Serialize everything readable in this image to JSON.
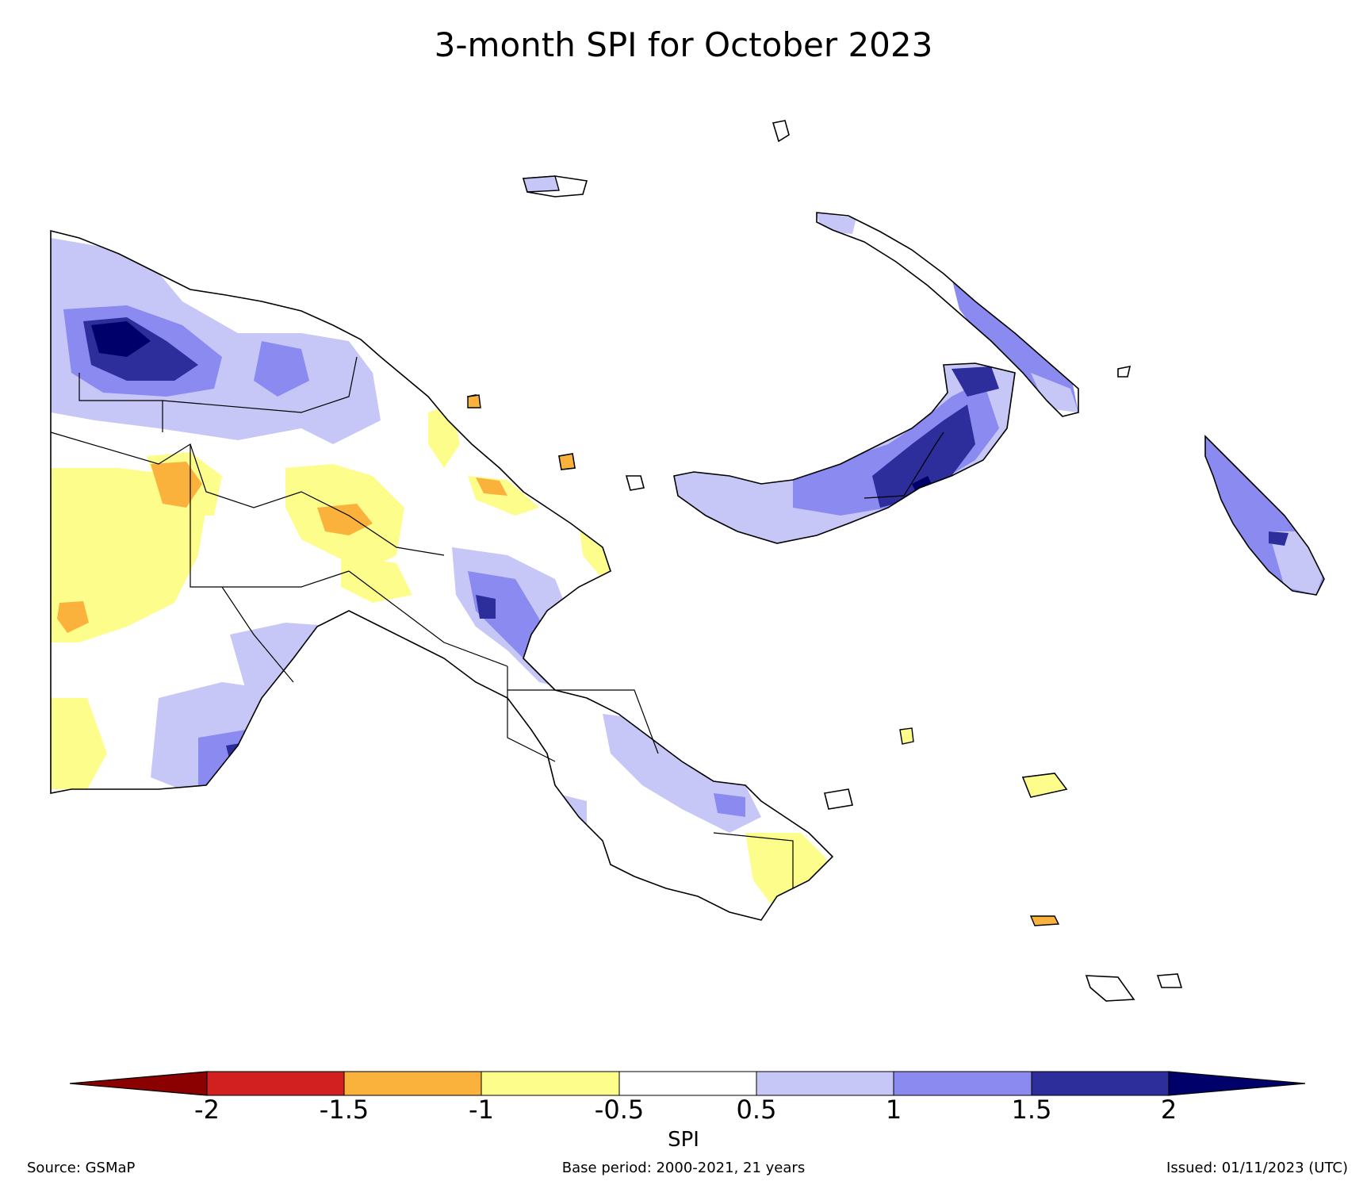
{
  "title": "3-month SPI for October 2023",
  "colorbar": {
    "label": "SPI",
    "ticks": [
      "-2",
      "-1.5",
      "-1",
      "-0.5",
      "0.5",
      "1",
      "1.5",
      "2"
    ],
    "bins": [
      {
        "range": "< -2",
        "color": "#8b0000"
      },
      {
        "range": "-2 to -1.5",
        "color": "#d21f1f"
      },
      {
        "range": "-1.5 to -1",
        "color": "#fbb23c"
      },
      {
        "range": "-1 to -0.5",
        "color": "#fdfd8c"
      },
      {
        "range": "-0.5 to 0.5",
        "color": "#ffffff"
      },
      {
        "range": "0.5 to 1",
        "color": "#c6c6f7"
      },
      {
        "range": "1 to 1.5",
        "color": "#8a8af0"
      },
      {
        "range": "1.5 to 2",
        "color": "#2d2d9b"
      },
      {
        "range": "> 2",
        "color": "#00006b"
      }
    ]
  },
  "footer": {
    "source": "Source: GSMaP",
    "base_period": "Base period: 2000-2021, 21 years",
    "issued": "Issued: 01/11/2023 (UTC)"
  },
  "region": "Papua New Guinea"
}
